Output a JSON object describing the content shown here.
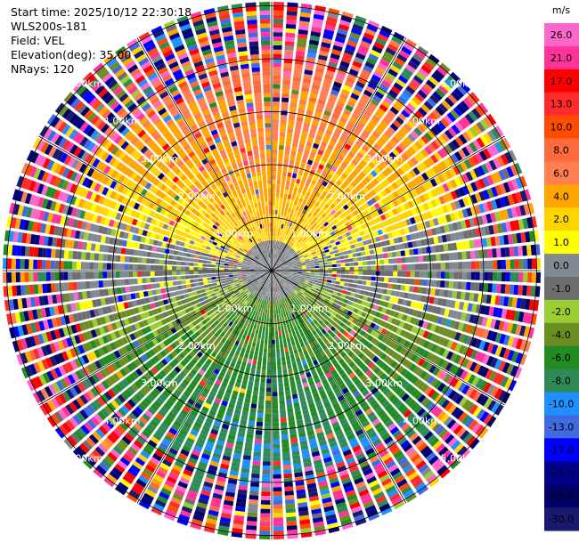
{
  "header": {
    "start_time": "Start time: 2025/10/12 22:30:18",
    "station": "WLS200s-181",
    "field": "Field: VEL",
    "elevation": "Elevation(deg): 35.00",
    "nrays": "NRays: 120"
  },
  "chart_data": {
    "type": "ppi_polar_scan",
    "units": "m/s",
    "n_rays": 120,
    "max_range_km": 5.0,
    "range_rings_km": [
      1,
      2,
      3,
      4,
      5
    ],
    "range_labels": [
      "1.00km",
      "2.00km",
      "3.00km",
      "4.00km",
      "5.00km"
    ],
    "colorbar": {
      "ticks": [
        "26.0",
        "21.0",
        "17.0",
        "13.0",
        "10.0",
        "8.0",
        "6.0",
        "4.0",
        "2.0",
        "1.0",
        "0.0",
        "-1.0",
        "-2.0",
        "-4.0",
        "-6.0",
        "-8.0",
        "-10.0",
        "-13.0",
        "-17.0",
        "-21.0",
        "-26.0",
        "-30.0"
      ],
      "bands": [
        {
          "from": 26,
          "to": 30,
          "color": "#ff66cc"
        },
        {
          "from": 21,
          "to": 26,
          "color": "#ff3399"
        },
        {
          "from": 17,
          "to": 21,
          "color": "#ff0000"
        },
        {
          "from": 13,
          "to": 17,
          "color": "#ff2a2a"
        },
        {
          "from": 10,
          "to": 13,
          "color": "#ff4d00"
        },
        {
          "from": 8,
          "to": 10,
          "color": "#ff6a3d"
        },
        {
          "from": 6,
          "to": 8,
          "color": "#ff7f50"
        },
        {
          "from": 4,
          "to": 6,
          "color": "#ffa500"
        },
        {
          "from": 2,
          "to": 4,
          "color": "#ffd400"
        },
        {
          "from": 1,
          "to": 2,
          "color": "#ffff00"
        },
        {
          "from": 0,
          "to": 1,
          "color": "#808a94"
        },
        {
          "from": -1,
          "to": 0,
          "color": "#6e6e6e"
        },
        {
          "from": -2,
          "to": -1,
          "color": "#9acd32"
        },
        {
          "from": -4,
          "to": -2,
          "color": "#6b8e23"
        },
        {
          "from": -6,
          "to": -4,
          "color": "#228b22"
        },
        {
          "from": -8,
          "to": -6,
          "color": "#2e8b57"
        },
        {
          "from": -10,
          "to": -8,
          "color": "#1e90ff"
        },
        {
          "from": -13,
          "to": -10,
          "color": "#4169e1"
        },
        {
          "from": -17,
          "to": -13,
          "color": "#0000ff"
        },
        {
          "from": -21,
          "to": -17,
          "color": "#00008b"
        },
        {
          "from": -26,
          "to": -21,
          "color": "#000066"
        },
        {
          "from": -30,
          "to": -26,
          "color": "#191970"
        }
      ]
    },
    "velocity_pattern": {
      "north_sector": "positive 2 to 8 m/s (yellow/orange)",
      "south_sector": "negative -2 to -8 m/s (green)",
      "near_zero_core": "0 to -1 m/s (grey)",
      "beyond_about_4_km": "noisy random values spanning full scale"
    }
  }
}
